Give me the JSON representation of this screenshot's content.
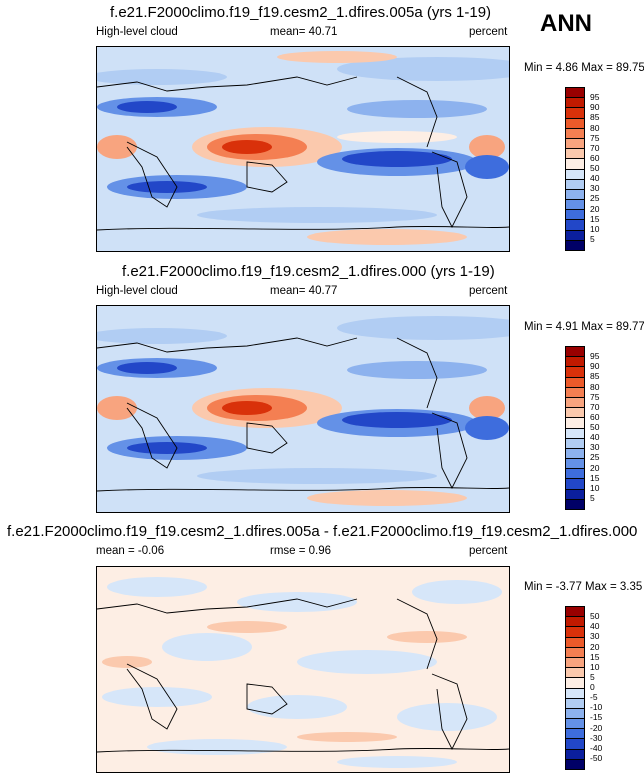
{
  "season": "ANN",
  "panels": [
    {
      "title": "f.e21.F2000climo.f19_f19.cesm2_1.dfires.005a (yrs 1-19)",
      "left_label": "High-level cloud",
      "center_label": "mean=  40.71",
      "right_label": "percent",
      "minmax": "Min =   4.86 Max =  89.75",
      "levels": [
        "95",
        "90",
        "85",
        "80",
        "75",
        "70",
        "60",
        "50",
        "40",
        "30",
        "25",
        "20",
        "15",
        "10",
        "5"
      ],
      "colors": [
        "#990000",
        "#c11a00",
        "#d9310a",
        "#ec5a2a",
        "#f47f52",
        "#f8a47f",
        "#fbc9ad",
        "#fdeee4",
        "#d6e6f9",
        "#b1cdf3",
        "#8db2ee",
        "#6491e7",
        "#3e6ddd",
        "#2247c8",
        "#0b1f9e",
        "#000066"
      ]
    },
    {
      "title": "f.e21.F2000climo.f19_f19.cesm2_1.dfires.000 (yrs 1-19)",
      "left_label": "High-level cloud",
      "center_label": "mean=  40.77",
      "right_label": "percent",
      "minmax": "Min =  4.91 Max =  89.77",
      "levels": [
        "95",
        "90",
        "85",
        "80",
        "75",
        "70",
        "60",
        "50",
        "40",
        "30",
        "25",
        "20",
        "15",
        "10",
        "5"
      ],
      "colors": [
        "#990000",
        "#c11a00",
        "#d9310a",
        "#ec5a2a",
        "#f47f52",
        "#f8a47f",
        "#fbc9ad",
        "#fdeee4",
        "#d6e6f9",
        "#b1cdf3",
        "#8db2ee",
        "#6491e7",
        "#3e6ddd",
        "#2247c8",
        "#0b1f9e",
        "#000066"
      ]
    },
    {
      "title": "f.e21.F2000climo.f19_f19.cesm2_1.dfires.005a - f.e21.F2000climo.f19_f19.cesm2_1.dfires.000",
      "left_label": "mean =  -0.06",
      "center_label": "rmse =   0.96",
      "right_label": "percent",
      "minmax": "Min =  -3.77 Max =   3.35",
      "levels": [
        "50",
        "40",
        "30",
        "20",
        "15",
        "10",
        "5",
        "0",
        "-5",
        "-10",
        "-15",
        "-20",
        "-30",
        "-40",
        "-50"
      ],
      "colors": [
        "#990000",
        "#c11a00",
        "#d9310a",
        "#ec5a2a",
        "#f47f52",
        "#f8a47f",
        "#fbc9ad",
        "#fdeee4",
        "#d6e6f9",
        "#b1cdf3",
        "#8db2ee",
        "#6491e7",
        "#3e6ddd",
        "#2247c8",
        "#0b1f9e",
        "#000066"
      ]
    }
  ]
}
